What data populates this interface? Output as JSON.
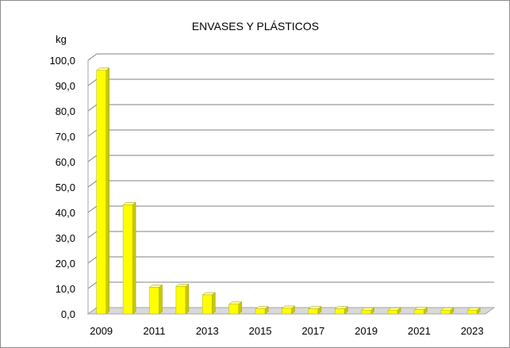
{
  "chart_data": {
    "type": "bar",
    "title": "ENVASES Y PLÁSTICOS",
    "ylabel": "kg",
    "xlabel": "",
    "ylim": [
      0,
      100
    ],
    "y_ticks": [
      "0,0",
      "10,0",
      "20,0",
      "30,0",
      "40,0",
      "50,0",
      "60,0",
      "70,0",
      "80,0",
      "90,0",
      "100,0"
    ],
    "categories": [
      "2009",
      "2010",
      "2011",
      "2012",
      "2013",
      "2014",
      "2015",
      "2016",
      "2017",
      "2018",
      "2019",
      "2020",
      "2021",
      "2022",
      "2023"
    ],
    "x_tick_labels": [
      "2009",
      "2011",
      "2013",
      "2015",
      "2017",
      "2019",
      "2021",
      "2023"
    ],
    "values": [
      96.0,
      43.0,
      10.5,
      10.8,
      7.5,
      3.8,
      2.0,
      2.2,
      2.0,
      2.0,
      1.5,
      1.5,
      1.7,
      1.5,
      1.5
    ],
    "grid": true,
    "legend": "none",
    "colors": {
      "bar_front": "#ffff00",
      "bar_side": "#c8c800",
      "bar_top": "#ffff99",
      "grid": "#808080",
      "floor": "#a6a6a6"
    }
  }
}
